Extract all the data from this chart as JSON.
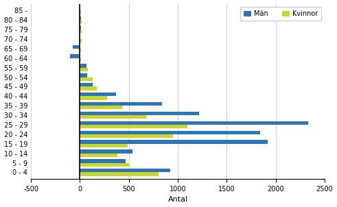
{
  "age_groups": [
    "85 -",
    "80 - 84",
    "75 - 79",
    "70 - 74",
    "65 - 69",
    "60 - 64",
    "55 - 59",
    "50 - 54",
    "45 - 49",
    "40 - 44",
    "35 - 39",
    "30 - 34",
    "25 - 29",
    "20 - 24",
    "15 - 19",
    "10 - 14",
    "5 - 9",
    "0 - 4"
  ],
  "man": [
    5,
    10,
    10,
    5,
    -70,
    -100,
    65,
    75,
    130,
    370,
    840,
    1220,
    2330,
    1840,
    1920,
    540,
    470,
    920
  ],
  "kvinnor": [
    10,
    15,
    20,
    15,
    10,
    10,
    80,
    130,
    175,
    275,
    430,
    680,
    1100,
    950,
    490,
    380,
    500,
    800
  ],
  "man_color": "#2E75B6",
  "kvinnor_color": "#C9D62A",
  "xlabel": "Antal",
  "legend_man": "Män",
  "legend_kvinnor": "Kvinnor",
  "xlim": [
    -500,
    2500
  ],
  "xticks": [
    -500,
    0,
    500,
    1000,
    1500,
    2000,
    2500
  ],
  "xtick_labels": [
    "-500",
    "0",
    "500",
    "1000",
    "1500",
    "2000",
    "2500"
  ],
  "grid_color": "#CCCCCC",
  "bar_height": 0.38,
  "title": ""
}
